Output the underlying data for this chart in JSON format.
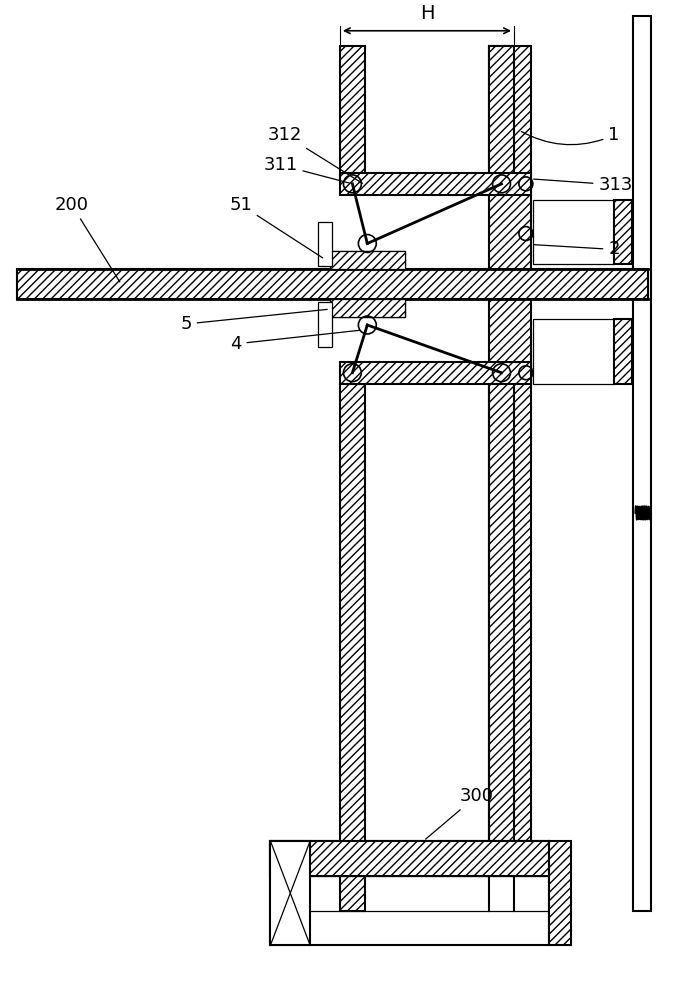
{
  "bg_color": "#ffffff",
  "lw": 1.5,
  "tlw": 0.9,
  "hp": "////",
  "figsize": [
    6.74,
    10.0
  ],
  "dpi": 100
}
